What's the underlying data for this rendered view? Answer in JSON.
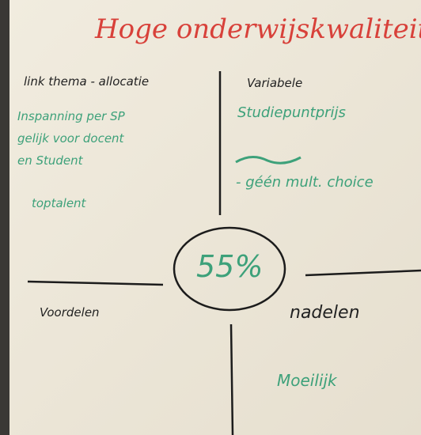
{
  "title": "Hoge onderwijskwaliteit",
  "center": "55%",
  "quadrants": {
    "top_left": {
      "heading": "link thema - allocatie",
      "items": [
        "Inspanning per SP",
        "gelijk voor docent",
        "en Student",
        "toptalent"
      ]
    },
    "top_right": {
      "heading": "Variabele",
      "items": [
        "Studiepuntprijs",
        "- géén mult. choice"
      ]
    },
    "bottom_left": {
      "heading": "Voordelen",
      "items": []
    },
    "bottom_right": {
      "heading": "nadelen",
      "items": [
        "Moeilijk"
      ]
    }
  }
}
